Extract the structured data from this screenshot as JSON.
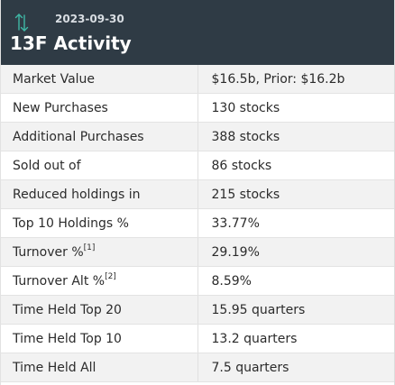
{
  "header": {
    "date": "2023-09-30",
    "title": "13F Activity",
    "icon": "up-down-arrows-icon",
    "background": "#2f3b45",
    "icon_color": "#3fb8a6"
  },
  "rows": [
    {
      "label": "Market Value",
      "footnote": "",
      "value": "$16.5b, Prior: $16.2b"
    },
    {
      "label": "New Purchases",
      "footnote": "",
      "value": "130 stocks"
    },
    {
      "label": "Additional Purchases",
      "footnote": "",
      "value": "388 stocks"
    },
    {
      "label": "Sold out of",
      "footnote": "",
      "value": "86 stocks"
    },
    {
      "label": "Reduced holdings in",
      "footnote": "",
      "value": "215 stocks"
    },
    {
      "label": "Top 10 Holdings %",
      "footnote": "",
      "value": "33.77%"
    },
    {
      "label": "Turnover %",
      "footnote": "[1]",
      "value": "29.19%"
    },
    {
      "label": "Turnover Alt %",
      "footnote": "[2]",
      "value": "8.59%"
    },
    {
      "label": "Time Held Top 20",
      "footnote": "",
      "value": "15.95 quarters"
    },
    {
      "label": "Time Held Top 10",
      "footnote": "",
      "value": "13.2 quarters"
    },
    {
      "label": "Time Held All",
      "footnote": "",
      "value": "7.5 quarters"
    }
  ]
}
